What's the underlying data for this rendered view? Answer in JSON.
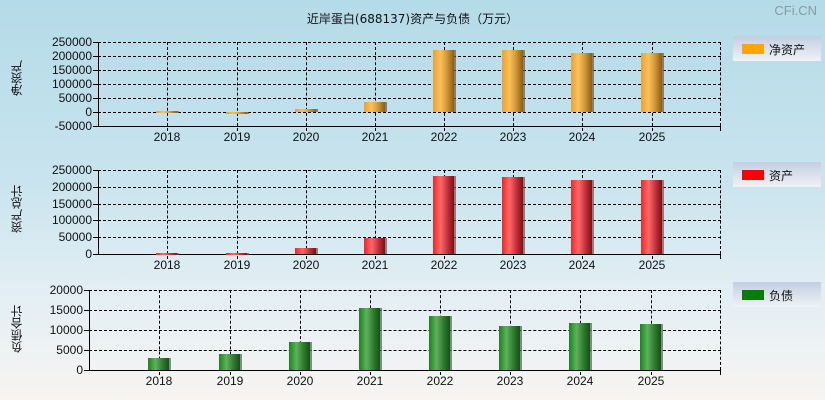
{
  "title": "近岸蛋白(688137)资产与负债（万元）",
  "watermark": "CFi.CN",
  "chart_data": [
    {
      "type": "bar",
      "title": "近岸蛋白(688137)资产与负债（万元）",
      "ylabel": "净资产",
      "legend": "净资产",
      "color": "#ffa500",
      "categories": [
        "2018",
        "2019",
        "2020",
        "2021",
        "2022",
        "2023",
        "2024",
        "2025"
      ],
      "values": [
        3000,
        -2000,
        10000,
        35000,
        221000,
        221000,
        210000,
        210000
      ],
      "ylim": [
        -50000,
        250000
      ],
      "yticks": [
        "250000",
        "200000",
        "150000",
        "100000",
        "50000",
        "0",
        "-50000"
      ],
      "grid": true
    },
    {
      "type": "bar",
      "ylabel": "资产总计",
      "legend": "资产",
      "color": "#ff0000",
      "categories": [
        "2018",
        "2019",
        "2020",
        "2021",
        "2022",
        "2023",
        "2024",
        "2025"
      ],
      "values": [
        3000,
        3000,
        17000,
        49000,
        232000,
        229000,
        220000,
        220000
      ],
      "ylim": [
        0,
        250000
      ],
      "yticks": [
        "250000",
        "200000",
        "150000",
        "100000",
        "50000",
        "0"
      ],
      "grid": true
    },
    {
      "type": "bar",
      "ylabel": "负债合计",
      "legend": "负债",
      "color": "#008000",
      "categories": [
        "2018",
        "2019",
        "2020",
        "2021",
        "2022",
        "2023",
        "2024",
        "2025"
      ],
      "values": [
        3000,
        4000,
        7000,
        15500,
        13500,
        11000,
        11800,
        11500
      ],
      "ylim": [
        0,
        20000
      ],
      "yticks": [
        "20000",
        "15000",
        "10000",
        "5000",
        "0"
      ],
      "grid": true
    }
  ]
}
